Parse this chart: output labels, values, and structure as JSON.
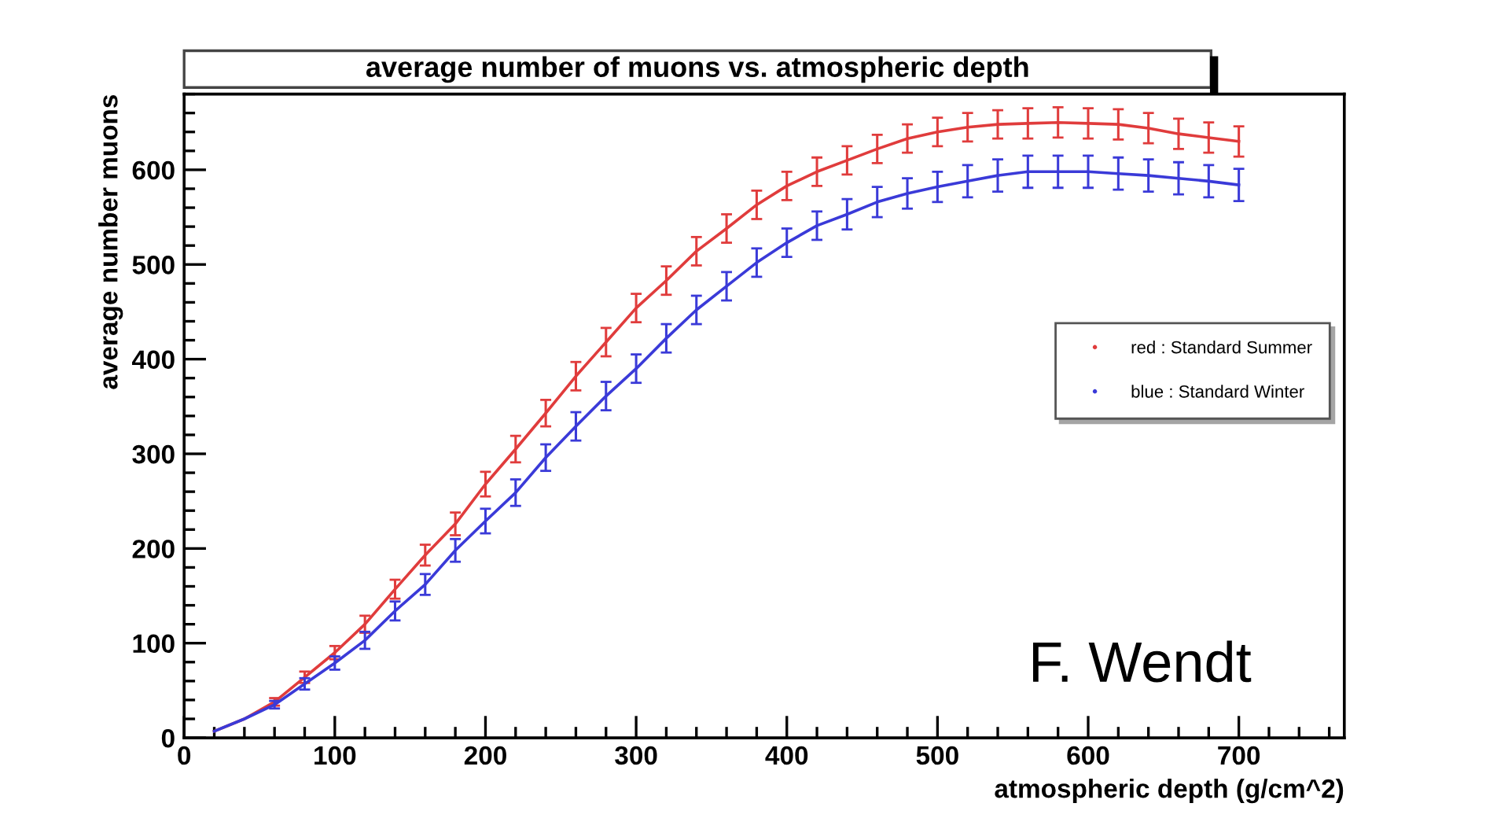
{
  "chart_data": {
    "type": "line",
    "title": "average number of muons vs. atmospheric depth",
    "xlabel": "atmospheric depth (g/cm^2)",
    "ylabel": "average number muons",
    "x": [
      20,
      40,
      60,
      80,
      100,
      120,
      140,
      160,
      180,
      200,
      220,
      240,
      260,
      280,
      300,
      320,
      340,
      360,
      380,
      400,
      420,
      440,
      460,
      480,
      500,
      520,
      540,
      560,
      580,
      600,
      620,
      640,
      660,
      680,
      700
    ],
    "series": [
      {
        "name": "red : Standard Summer",
        "color": "#e03c3c",
        "values": [
          7,
          20,
          38,
          64,
          90,
          120,
          157,
          193,
          226,
          268,
          305,
          343,
          382,
          418,
          454,
          483,
          514,
          538,
          563,
          583,
          598,
          610,
          622,
          633,
          640,
          645,
          648,
          649,
          650,
          649,
          648,
          644,
          638,
          634,
          630
        ],
        "errors": [
          null,
          null,
          4,
          6,
          7,
          9,
          10,
          11,
          12,
          13,
          14,
          14,
          15,
          15,
          15,
          15,
          15,
          15,
          15,
          15,
          15,
          15,
          15,
          15,
          15,
          15,
          15,
          16,
          16,
          16,
          16,
          16,
          16,
          16,
          16
        ]
      },
      {
        "name": "blue : Standard Winter",
        "color": "#3a3ad8",
        "values": [
          7,
          20,
          35,
          57,
          79,
          103,
          134,
          162,
          198,
          229,
          259,
          296,
          329,
          361,
          390,
          422,
          452,
          477,
          502,
          523,
          541,
          553,
          566,
          575,
          582,
          588,
          594,
          598,
          598,
          598,
          596,
          594,
          591,
          588,
          584
        ],
        "errors": [
          null,
          null,
          4,
          6,
          7,
          9,
          10,
          11,
          12,
          13,
          14,
          14,
          15,
          15,
          15,
          15,
          15,
          15,
          15,
          15,
          15,
          16,
          16,
          16,
          16,
          17,
          17,
          17,
          17,
          17,
          17,
          17,
          17,
          17,
          17
        ]
      }
    ],
    "xlim": [
      0,
      770
    ],
    "ylim": [
      0,
      680
    ],
    "xticks": [
      0,
      100,
      200,
      300,
      400,
      500,
      600,
      700
    ],
    "yticks": [
      0,
      100,
      200,
      300,
      400,
      500,
      600
    ],
    "grid": false,
    "legend": "right",
    "marker": "none",
    "line_style": "solid",
    "annotations": [
      "F. Wendt"
    ]
  }
}
